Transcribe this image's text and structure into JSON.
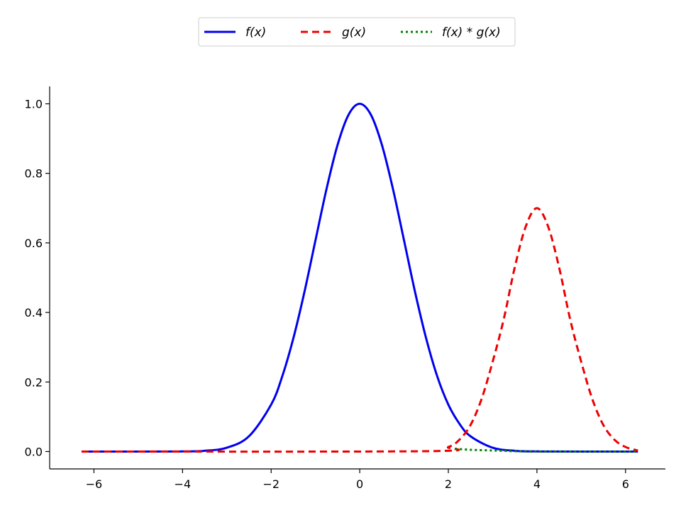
{
  "chart_data": {
    "type": "line",
    "title": "",
    "xlabel": "",
    "ylabel": "",
    "xlim": [
      -7.0,
      6.9
    ],
    "ylim": [
      -0.05,
      1.05
    ],
    "x_ticks": [
      -6,
      -4,
      -2,
      0,
      2,
      4,
      6
    ],
    "x_tick_labels": [
      "−6",
      "−4",
      "−2",
      "0",
      "2",
      "4",
      "6"
    ],
    "y_ticks": [
      0.0,
      0.2,
      0.4,
      0.6,
      0.8,
      1.0
    ],
    "y_tick_labels": [
      "0.0",
      "0.2",
      "0.4",
      "0.6",
      "0.8",
      "1.0"
    ],
    "grid": false,
    "legend_position": "top-center",
    "series": [
      {
        "name": "f(x)",
        "color": "#0000ee",
        "style": "solid",
        "x": [
          -6.28,
          -4.0,
          -3.5,
          -3.0,
          -2.5,
          -2.0,
          -1.75,
          -1.5,
          -1.25,
          -1.0,
          -0.75,
          -0.5,
          -0.25,
          0.0,
          0.25,
          0.5,
          0.75,
          1.0,
          1.25,
          1.5,
          1.75,
          2.0,
          2.25,
          2.5,
          3.0,
          3.5,
          4.0,
          6.28
        ],
        "y": [
          0.0,
          0.0003,
          0.0022,
          0.011,
          0.044,
          0.135,
          0.216,
          0.325,
          0.458,
          0.607,
          0.755,
          0.882,
          0.969,
          1.0,
          0.969,
          0.882,
          0.755,
          0.607,
          0.458,
          0.325,
          0.216,
          0.135,
          0.08,
          0.044,
          0.011,
          0.0022,
          0.0003,
          0.0
        ]
      },
      {
        "name": "g(x)",
        "color": "#ee0000",
        "style": "dashed",
        "x": [
          -6.28,
          1.5,
          2.0,
          2.25,
          2.5,
          2.75,
          3.0,
          3.25,
          3.5,
          3.75,
          4.0,
          4.25,
          4.5,
          4.75,
          5.0,
          5.25,
          5.5,
          5.75,
          6.0,
          6.28
        ],
        "y": [
          0.0,
          0.001,
          0.013,
          0.034,
          0.076,
          0.151,
          0.258,
          0.38,
          0.53,
          0.648,
          0.7,
          0.648,
          0.53,
          0.38,
          0.258,
          0.151,
          0.076,
          0.034,
          0.013,
          0.003
        ]
      },
      {
        "name": "f(x) * g(x)",
        "color": "#008000",
        "style": "dotted",
        "x": [
          2.15,
          2.5,
          3.0,
          3.5,
          4.0,
          5.0,
          6.28
        ],
        "y": [
          0.008,
          0.005,
          0.003,
          0.001,
          0.0,
          0.0,
          0.0
        ]
      }
    ]
  }
}
